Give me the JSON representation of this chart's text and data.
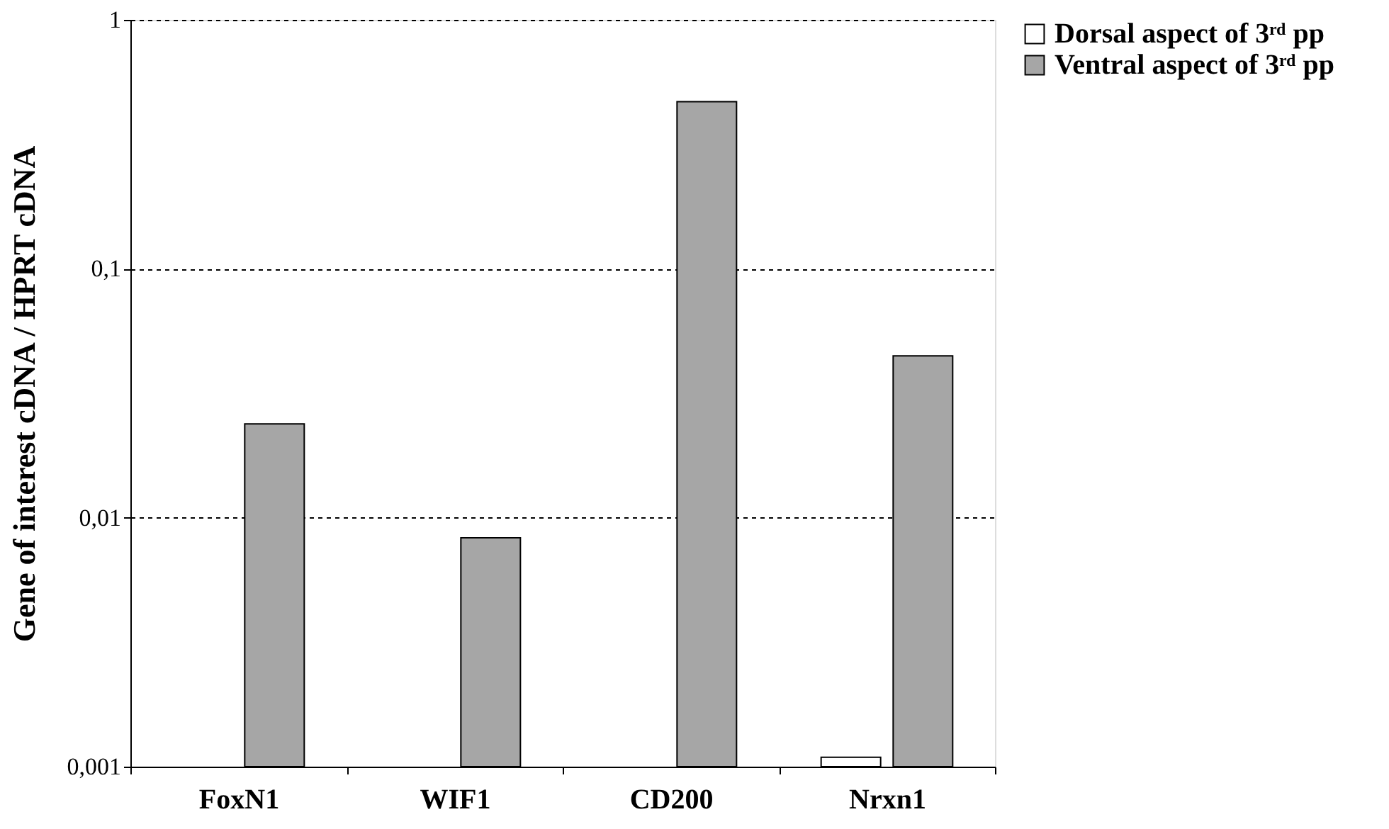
{
  "chart_data": {
    "type": "bar",
    "ylabel": "Gene of interest cDNA / HPRT cDNA",
    "categories": [
      "FoxN1",
      "WIF1",
      "CD200",
      "Nrxn1"
    ],
    "series": [
      {
        "name": "Dorsal aspect of 3ʳᵈ pp",
        "color": "#ffffff",
        "values": [
          null,
          null,
          null,
          0.00109
        ]
      },
      {
        "name": "Ventral aspect of 3ʳᵈ pp",
        "color": "#a6a6a6",
        "values": [
          0.0238,
          0.0083,
          0.469,
          0.0447
        ]
      }
    ],
    "log": true,
    "ylim": [
      0.001,
      1
    ],
    "yticks": [
      {
        "value": 0.001,
        "label": "0,001"
      },
      {
        "value": 0.01,
        "label": "0,01"
      },
      {
        "value": 0.1,
        "label": "0,1"
      },
      {
        "value": 1,
        "label": "1"
      }
    ],
    "grid": "y",
    "legend": "right"
  }
}
